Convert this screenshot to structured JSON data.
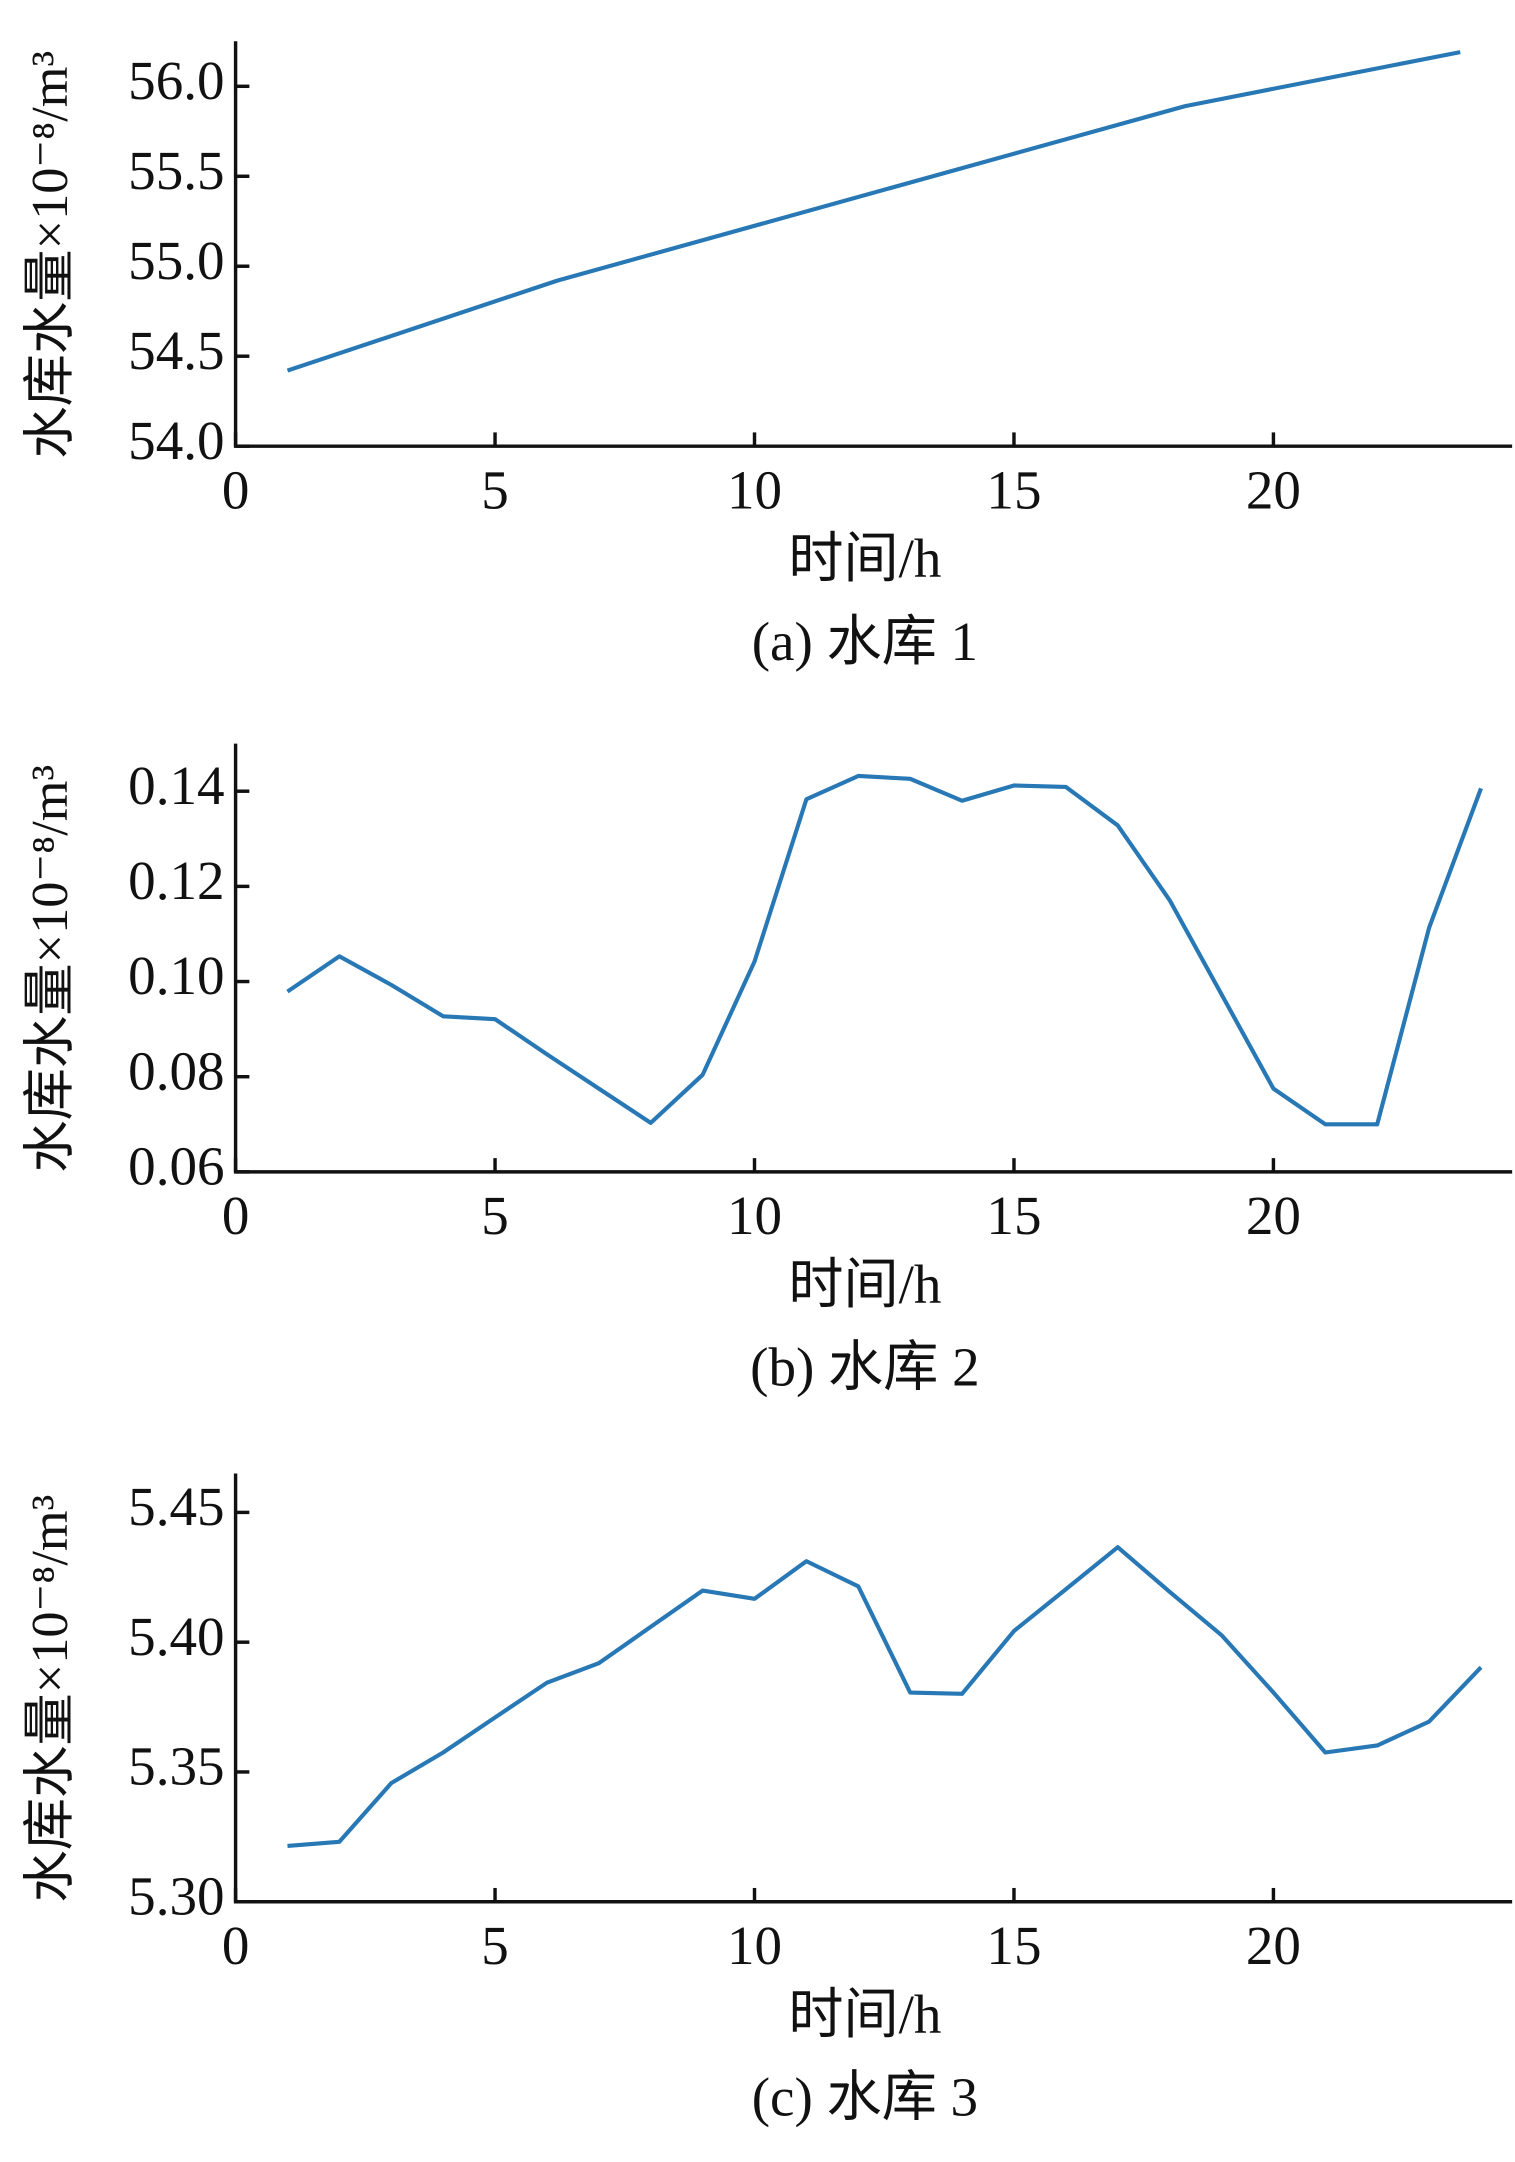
{
  "chart_data": [
    {
      "type": "line",
      "caption": "(a)  水库 1",
      "xlabel": "时间/h",
      "ylabel": "水库水量×10⁻⁸/m³",
      "x": [
        1,
        6.2,
        18.3,
        23.6
      ],
      "values": [
        54.42,
        54.92,
        55.89,
        56.19
      ],
      "color": "#2878b5",
      "xlim": [
        0,
        24.6
      ],
      "xticks": [
        0,
        5,
        10,
        15,
        20
      ],
      "ylim": [
        54,
        56.25
      ],
      "yticks": [
        {
          "value": 54,
          "label": "54.0"
        },
        54.5,
        {
          "value": 55,
          "label": "55.0"
        },
        55.5,
        {
          "value": 56,
          "label": "56.0"
        }
      ]
    },
    {
      "type": "line",
      "caption": "(b)  水库 2",
      "xlabel": "时间/h",
      "ylabel": "水库水量×10⁻⁸/m³",
      "x": [
        1,
        2,
        3,
        4,
        5,
        6,
        7,
        8,
        9,
        10,
        11,
        12,
        13,
        14,
        15,
        16,
        17,
        18,
        19,
        20,
        21,
        22,
        23,
        24
      ],
      "values": [
        0.0979,
        0.1053,
        0.0993,
        0.0927,
        0.0921,
        0.0847,
        0.0775,
        0.0703,
        0.0804,
        0.1042,
        0.1383,
        0.1432,
        0.1426,
        0.138,
        0.1412,
        0.1409,
        0.1328,
        0.1171,
        0.0973,
        0.0775,
        0.07,
        0.07,
        0.1113,
        0.1406
      ],
      "color": "#2878b5",
      "xlim": [
        0,
        24.6
      ],
      "xticks": [
        0,
        5,
        10,
        15,
        20
      ],
      "ylim": [
        0.06,
        0.15
      ],
      "yticks": [
        0.06,
        0.08,
        {
          "value": 0.1,
          "label": "0.10"
        },
        0.12,
        0.14
      ]
    },
    {
      "type": "line",
      "caption": "(c)  水库 3",
      "xlabel": "时间/h",
      "ylabel": "水库水量×10⁻⁸/m³",
      "x": [
        1,
        2,
        3,
        4,
        5,
        6,
        7,
        8,
        9,
        10,
        11,
        12,
        13,
        14,
        15,
        16,
        17,
        18,
        19,
        20,
        21,
        22,
        23,
        24
      ],
      "values": [
        5.3215,
        5.3231,
        5.3457,
        5.3575,
        5.371,
        5.3844,
        5.3919,
        5.4059,
        5.4199,
        5.4167,
        5.4312,
        5.4215,
        5.3806,
        5.3801,
        5.4043,
        5.4204,
        5.4366,
        5.4194,
        5.4027,
        5.3806,
        5.3575,
        5.3602,
        5.3694,
        5.3903
      ],
      "color": "#2878b5",
      "xlim": [
        0,
        24.6
      ],
      "xticks": [
        0,
        5,
        10,
        15,
        20
      ],
      "ylim": [
        5.3,
        5.465
      ],
      "yticks": [
        {
          "value": 5.3,
          "label": "5.30"
        },
        5.35,
        {
          "value": 5.4,
          "label": "5.40"
        },
        5.45
      ]
    }
  ]
}
